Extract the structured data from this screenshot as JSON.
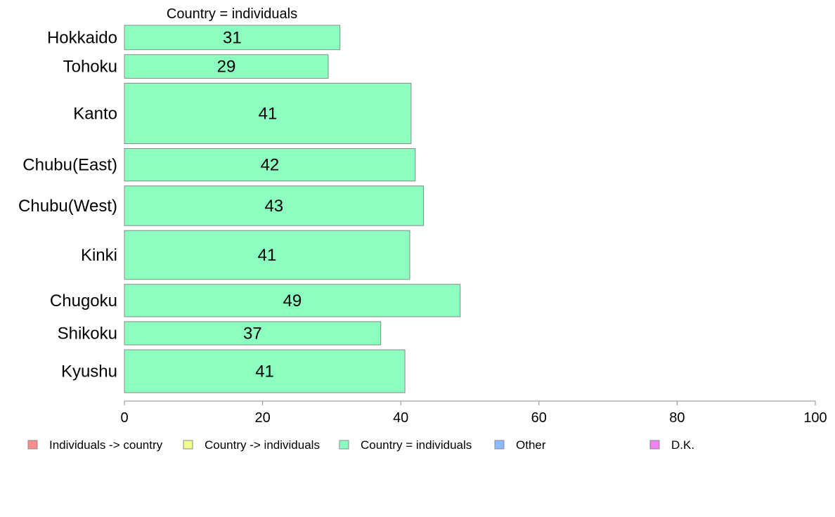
{
  "chart_data": {
    "type": "bar",
    "orientation": "horizontal",
    "title": "Country = individuals",
    "categories": [
      "Hokkaido",
      "Tohoku",
      "Kanto",
      "Chubu(East)",
      "Chubu(West)",
      "Kinki",
      "Chugoku",
      "Shikoku",
      "Kyushu"
    ],
    "weights": [
      61,
      59,
      151,
      81,
      99,
      122,
      81,
      58,
      107
    ],
    "series": [
      {
        "name": "Country = individuals",
        "values": [
          31.2,
          29.5,
          41.5,
          42.1,
          43.3,
          41.3,
          48.6,
          37.1,
          40.6
        ],
        "labels": [
          "31",
          "29",
          "41",
          "42",
          "43",
          "41",
          "49",
          "37",
          "41"
        ]
      }
    ],
    "bar_color": "#8cffc0",
    "bar_border": "#888888",
    "xlim": [
      0,
      100
    ],
    "xticks": [
      0,
      20,
      40,
      60,
      80,
      100
    ],
    "xtick_labels": [
      "0",
      "20",
      "40",
      "60",
      "80",
      "100"
    ],
    "xlabel": "",
    "ylabel": "",
    "grid": false,
    "legend_position": "bottom",
    "legend": [
      {
        "label": "Individuals -> country",
        "color": "#ff8c8c"
      },
      {
        "label": "Country -> individuals",
        "color": "#f2ff8c"
      },
      {
        "label": "Country = individuals",
        "color": "#8cffc0"
      },
      {
        "label": "Other",
        "color": "#8cb9ff"
      },
      {
        "label": "D.K.",
        "color": "#ee82ee"
      }
    ]
  }
}
